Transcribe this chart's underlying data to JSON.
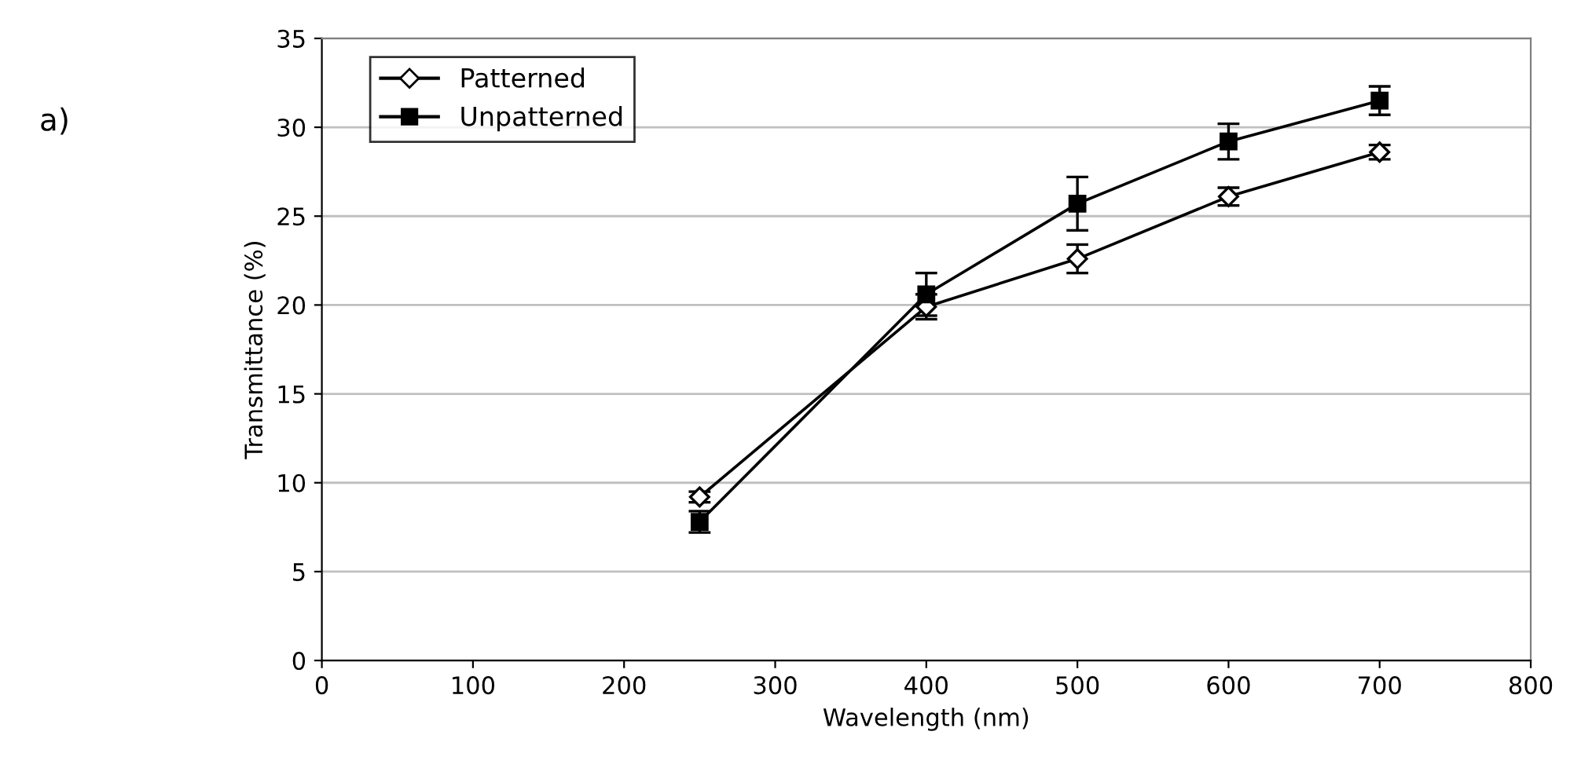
{
  "chart_data": {
    "type": "line",
    "xlabel": "Wavelength (nm)",
    "ylabel": "Transmittance (%)",
    "annotations": [
      "a)"
    ],
    "x": [
      250,
      400,
      500,
      600,
      700
    ],
    "series": [
      {
        "name": "Patterned",
        "color": "#000000",
        "marker": "diamond",
        "values": [
          9.2,
          19.9,
          22.6,
          26.1,
          28.6
        ],
        "errors": [
          0.3,
          0.7,
          0.8,
          0.5,
          0.4
        ]
      },
      {
        "name": "Unpatterned",
        "color": "#000000",
        "marker": "square",
        "values": [
          7.8,
          20.6,
          25.7,
          29.2,
          31.5
        ],
        "errors": [
          0.6,
          1.2,
          1.5,
          1.0,
          0.8
        ]
      }
    ],
    "xlim": [
      0,
      800
    ],
    "xticks": [
      0,
      100,
      200,
      300,
      400,
      500,
      600,
      700,
      800
    ],
    "ylim": [
      0,
      35
    ],
    "yticks": [
      0,
      5,
      10,
      15,
      20,
      25,
      30,
      35
    ],
    "grid": "y",
    "legend": "top left",
    "line_style": "solid"
  }
}
